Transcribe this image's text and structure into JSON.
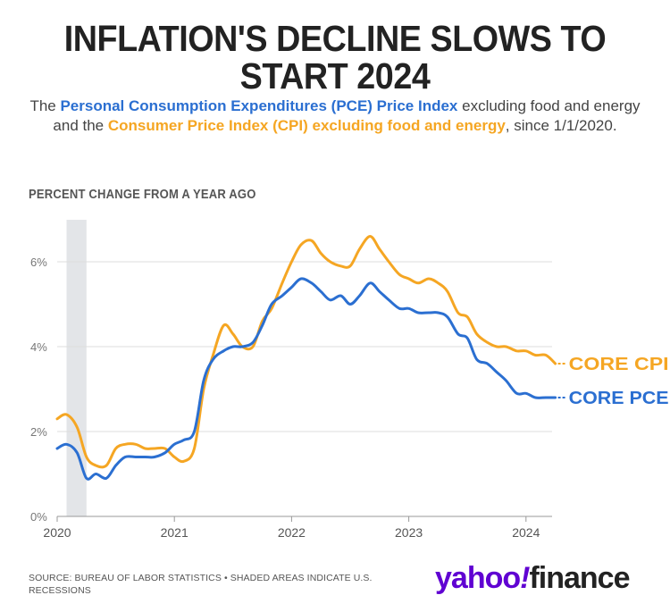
{
  "title": "INFLATION'S DECLINE SLOWS TO START 2024",
  "subtitle": {
    "part1": "The ",
    "pce_name": "Personal Consumption Expenditures (PCE) Price Index",
    "part2": " excluding food and energy and the ",
    "cpi_name": "Consumer Price Index (CPI) excluding food and energy",
    "part3": ", since 1/1/2020."
  },
  "source": "SOURCE: BUREAU OF LABOR STATISTICS • SHADED AREAS INDICATE U.S. RECESSIONS",
  "logo": {
    "yahoo": "yahoo",
    "bang": "!",
    "finance": "finance"
  },
  "colors": {
    "pce": "#2b6fd1",
    "cpi": "#f5a623",
    "recession": "#e3e5e8",
    "grid": "#dddddd",
    "logo": "#6001d2"
  },
  "chart_data": {
    "type": "line",
    "title": "INFLATION'S DECLINE SLOWS TO START 2024",
    "ylabel": "PERCENT CHANGE FROM A YEAR AGO",
    "xlabel": "",
    "ylim": [
      0,
      7
    ],
    "xlim": [
      2020.0,
      2024.25
    ],
    "yticks": [
      {
        "value": 0,
        "label": "0%"
      },
      {
        "value": 2,
        "label": "2%"
      },
      {
        "value": 4,
        "label": "4%"
      },
      {
        "value": 6,
        "label": "6%"
      }
    ],
    "xticks": [
      {
        "value": 2020,
        "label": "2020"
      },
      {
        "value": 2021,
        "label": "2021"
      },
      {
        "value": 2022,
        "label": "2022"
      },
      {
        "value": 2023,
        "label": "2023"
      },
      {
        "value": 2024,
        "label": "2024"
      }
    ],
    "recession": {
      "start": 2020.08,
      "end": 2020.25
    },
    "series": [
      {
        "name": "CORE CPI",
        "color": "#f5a623",
        "x": [
          2020.0,
          2020.08,
          2020.17,
          2020.25,
          2020.33,
          2020.42,
          2020.5,
          2020.58,
          2020.67,
          2020.75,
          2020.83,
          2020.92,
          2021.0,
          2021.08,
          2021.17,
          2021.25,
          2021.33,
          2021.42,
          2021.5,
          2021.58,
          2021.67,
          2021.75,
          2021.83,
          2021.92,
          2022.0,
          2022.08,
          2022.17,
          2022.25,
          2022.33,
          2022.42,
          2022.5,
          2022.58,
          2022.67,
          2022.75,
          2022.83,
          2022.92,
          2023.0,
          2023.08,
          2023.17,
          2023.25,
          2023.33,
          2023.42,
          2023.5,
          2023.58,
          2023.67,
          2023.75,
          2023.83,
          2023.92,
          2024.0,
          2024.08,
          2024.17,
          2024.25
        ],
        "values": [
          2.3,
          2.4,
          2.1,
          1.4,
          1.2,
          1.2,
          1.6,
          1.7,
          1.7,
          1.6,
          1.6,
          1.6,
          1.4,
          1.3,
          1.6,
          3.0,
          3.8,
          4.5,
          4.3,
          4.0,
          4.0,
          4.6,
          4.9,
          5.5,
          6.0,
          6.4,
          6.5,
          6.2,
          6.0,
          5.9,
          5.9,
          6.3,
          6.6,
          6.3,
          6.0,
          5.7,
          5.6,
          5.5,
          5.6,
          5.5,
          5.3,
          4.8,
          4.7,
          4.3,
          4.1,
          4.0,
          4.0,
          3.9,
          3.9,
          3.8,
          3.8,
          3.6
        ]
      },
      {
        "name": "CORE PCE",
        "color": "#2b6fd1",
        "x": [
          2020.0,
          2020.08,
          2020.17,
          2020.25,
          2020.33,
          2020.42,
          2020.5,
          2020.58,
          2020.67,
          2020.75,
          2020.83,
          2020.92,
          2021.0,
          2021.08,
          2021.17,
          2021.25,
          2021.33,
          2021.42,
          2021.5,
          2021.58,
          2021.67,
          2021.75,
          2021.83,
          2021.92,
          2022.0,
          2022.08,
          2022.17,
          2022.25,
          2022.33,
          2022.42,
          2022.5,
          2022.58,
          2022.67,
          2022.75,
          2022.83,
          2022.92,
          2023.0,
          2023.08,
          2023.17,
          2023.25,
          2023.33,
          2023.42,
          2023.5,
          2023.58,
          2023.67,
          2023.75,
          2023.83,
          2023.92,
          2024.0,
          2024.08,
          2024.17,
          2024.25
        ],
        "values": [
          1.6,
          1.7,
          1.5,
          0.9,
          1.0,
          0.9,
          1.2,
          1.4,
          1.4,
          1.4,
          1.4,
          1.5,
          1.7,
          1.8,
          2.0,
          3.2,
          3.7,
          3.9,
          4.0,
          4.0,
          4.1,
          4.5,
          5.0,
          5.2,
          5.4,
          5.6,
          5.5,
          5.3,
          5.1,
          5.2,
          5.0,
          5.2,
          5.5,
          5.3,
          5.1,
          4.9,
          4.9,
          4.8,
          4.8,
          4.8,
          4.7,
          4.3,
          4.2,
          3.7,
          3.6,
          3.4,
          3.2,
          2.9,
          2.9,
          2.8,
          2.8,
          2.8
        ]
      }
    ]
  }
}
